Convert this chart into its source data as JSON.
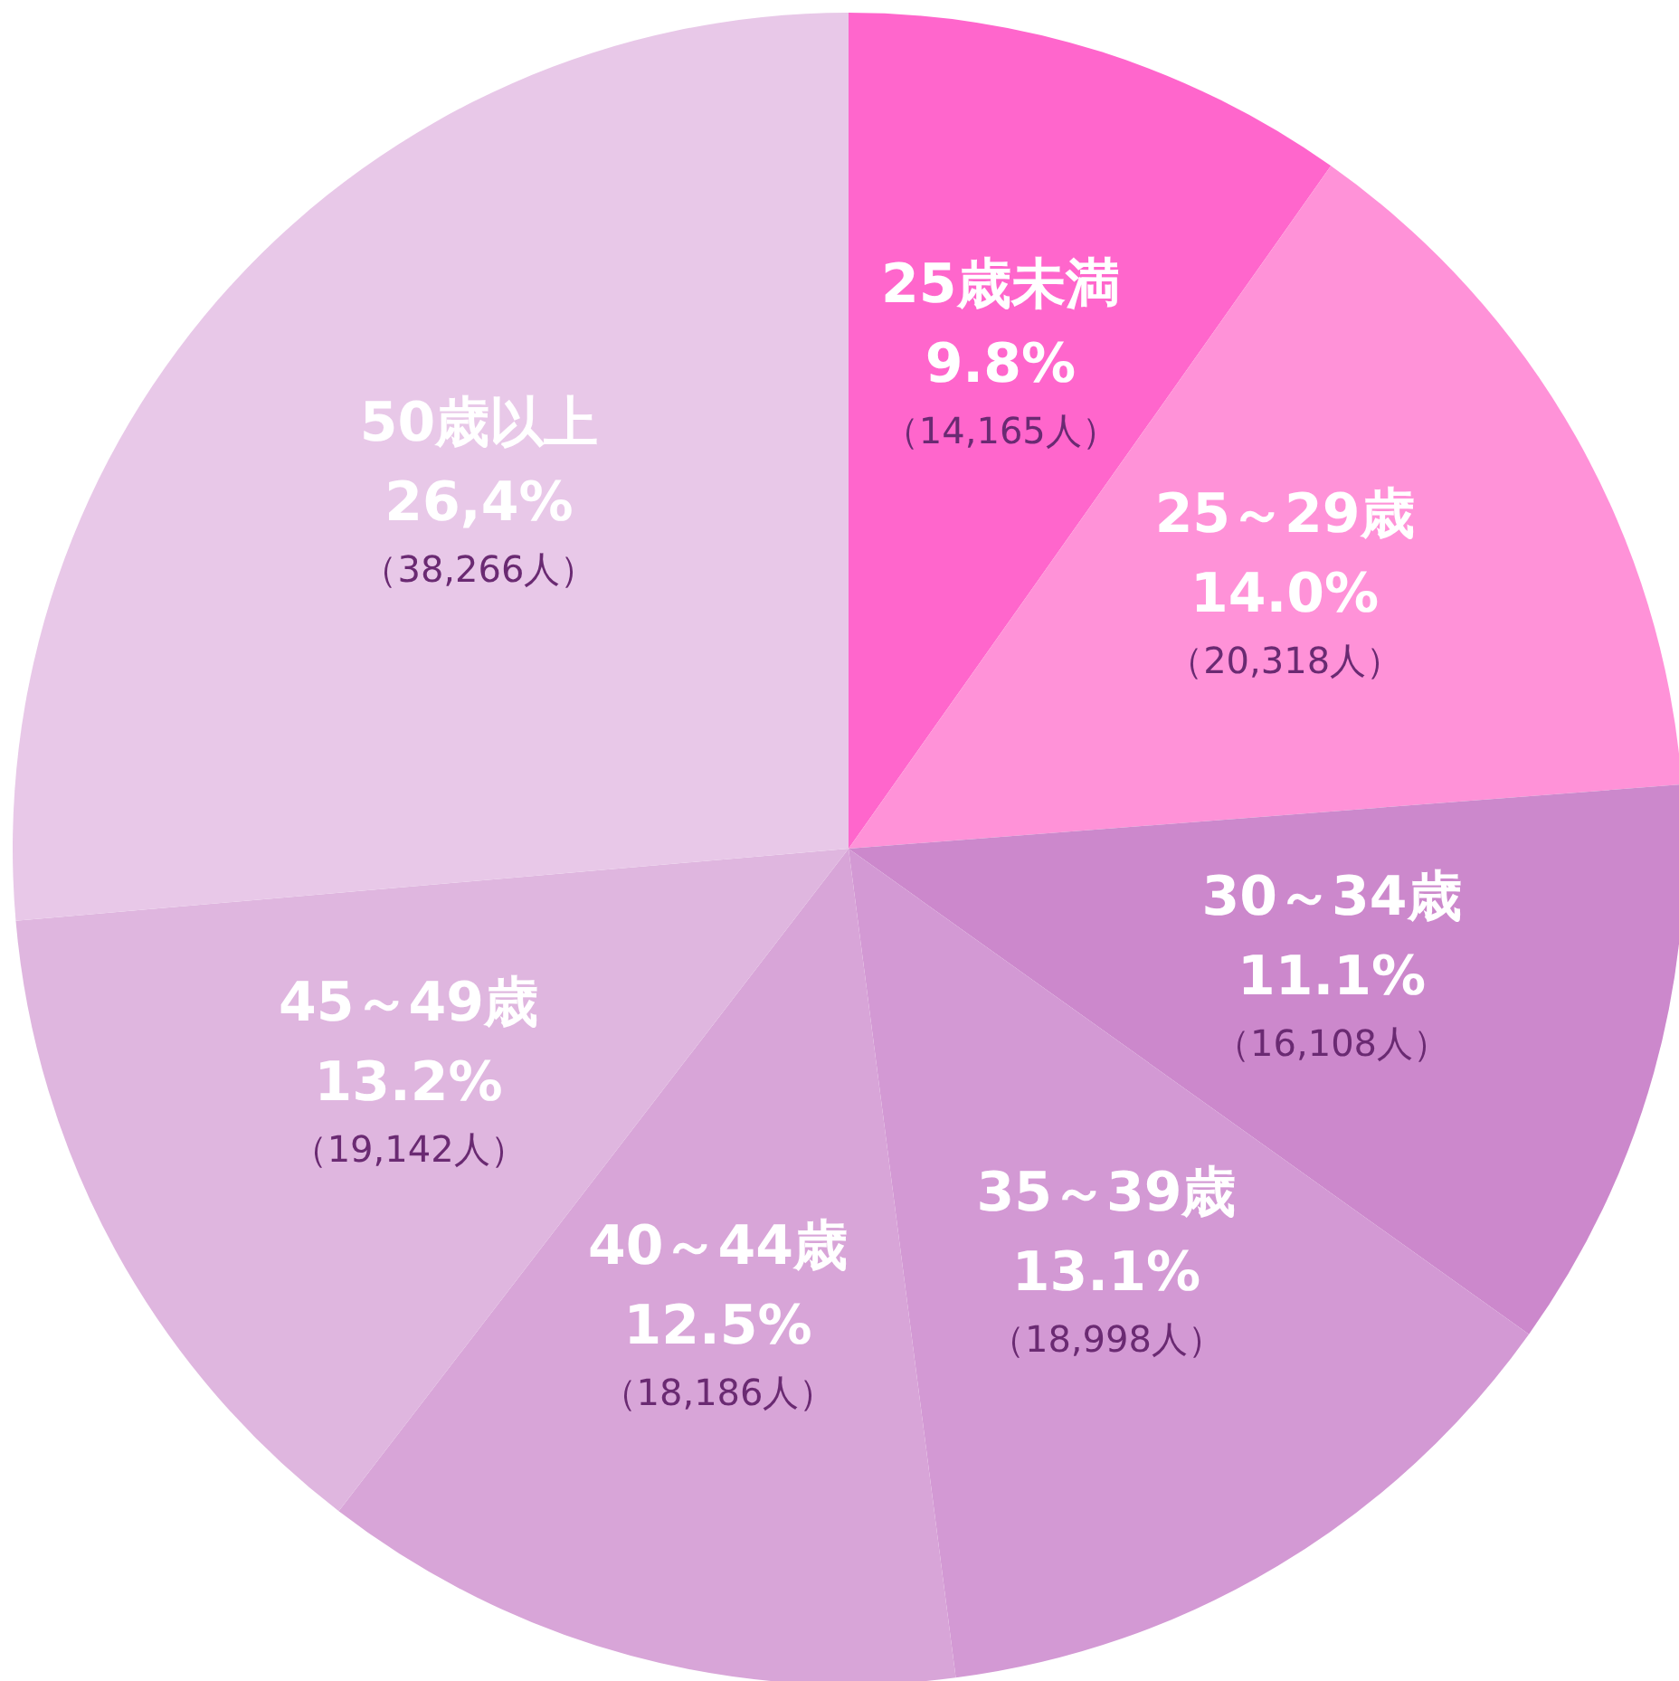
{
  "chart_data": {
    "type": "pie",
    "categories": [
      "25歳未満",
      "25～29歳",
      "30～34歳",
      "35～39歳",
      "40～44歳",
      "45～49歳",
      "50歳以上"
    ],
    "values": [
      9.8,
      14.0,
      11.1,
      13.1,
      12.5,
      13.2,
      26.4
    ],
    "colors": [
      "#ff66cc",
      "#ff92d8",
      "#cc88cc",
      "#d399d4",
      "#d8a5d8",
      "#dfb6df",
      "#e8c8e8"
    ],
    "value_labels": [
      "9.8%\n（14,165人）",
      "14.0%\n（20,318人）",
      "11.1%\n（16,108人）",
      "13.1%\n（18,998人）",
      "12.5%\n（18,186人）",
      "13.2%\n（19,142人）",
      "26,4%\n（38,266人）"
    ],
    "legend": false
  }
}
